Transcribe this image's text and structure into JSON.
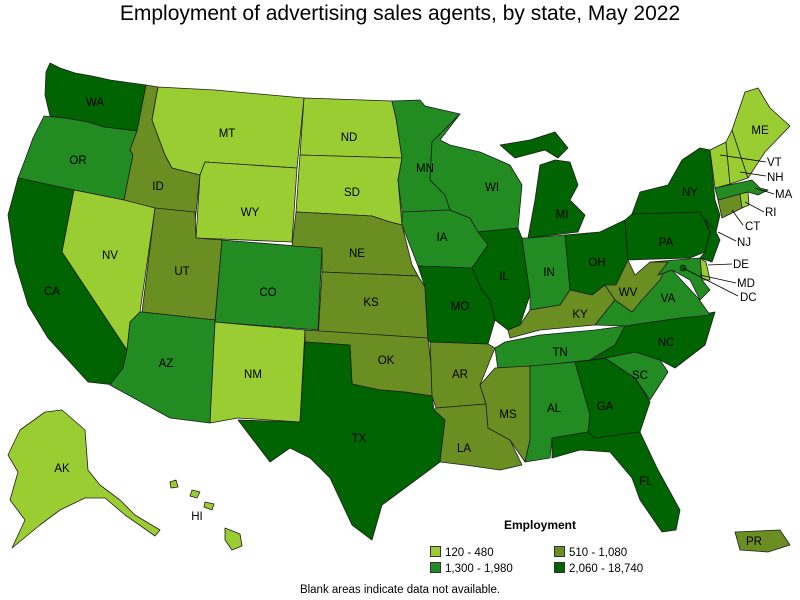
{
  "title": "Employment of advertising sales agents, by state, May 2022",
  "legend": {
    "title": "Employment",
    "items": [
      {
        "label": "120 - 480",
        "color": "#9acd32"
      },
      {
        "label": "510 - 1,080",
        "color": "#6b8e23"
      },
      {
        "label": "1,300 - 1,980",
        "color": "#228b22"
      },
      {
        "label": "2,060 - 18,740",
        "color": "#006400"
      }
    ]
  },
  "footnote": "Blank areas indicate data not available.",
  "chart_data": {
    "type": "choropleth",
    "categories": [
      "120 - 480",
      "510 - 1,080",
      "1,300 - 1,980",
      "2,060 - 18,740"
    ],
    "regions": [
      {
        "state": "WA",
        "bin": "2,060 - 18,740"
      },
      {
        "state": "OR",
        "bin": "1,300 - 1,980"
      },
      {
        "state": "CA",
        "bin": "2,060 - 18,740"
      },
      {
        "state": "ID",
        "bin": "510 - 1,080"
      },
      {
        "state": "NV",
        "bin": "120 - 480"
      },
      {
        "state": "MT",
        "bin": "120 - 480"
      },
      {
        "state": "WY",
        "bin": "120 - 480"
      },
      {
        "state": "UT",
        "bin": "510 - 1,080"
      },
      {
        "state": "AZ",
        "bin": "1,300 - 1,980"
      },
      {
        "state": "CO",
        "bin": "1,300 - 1,980"
      },
      {
        "state": "NM",
        "bin": "120 - 480"
      },
      {
        "state": "ND",
        "bin": "120 - 480"
      },
      {
        "state": "SD",
        "bin": "120 - 480"
      },
      {
        "state": "NE",
        "bin": "510 - 1,080"
      },
      {
        "state": "KS",
        "bin": "510 - 1,080"
      },
      {
        "state": "OK",
        "bin": "510 - 1,080"
      },
      {
        "state": "TX",
        "bin": "2,060 - 18,740"
      },
      {
        "state": "MN",
        "bin": "1,300 - 1,980"
      },
      {
        "state": "IA",
        "bin": "1,300 - 1,980"
      },
      {
        "state": "MO",
        "bin": "2,060 - 18,740"
      },
      {
        "state": "AR",
        "bin": "510 - 1,080"
      },
      {
        "state": "LA",
        "bin": "510 - 1,080"
      },
      {
        "state": "WI",
        "bin": "1,300 - 1,980"
      },
      {
        "state": "IL",
        "bin": "2,060 - 18,740"
      },
      {
        "state": "MI",
        "bin": "2,060 - 18,740"
      },
      {
        "state": "IN",
        "bin": "1,300 - 1,980"
      },
      {
        "state": "OH",
        "bin": "2,060 - 18,740"
      },
      {
        "state": "KY",
        "bin": "510 - 1,080"
      },
      {
        "state": "TN",
        "bin": "1,300 - 1,980"
      },
      {
        "state": "MS",
        "bin": "510 - 1,080"
      },
      {
        "state": "AL",
        "bin": "1,300 - 1,980"
      },
      {
        "state": "GA",
        "bin": "2,060 - 18,740"
      },
      {
        "state": "FL",
        "bin": "2,060 - 18,740"
      },
      {
        "state": "SC",
        "bin": "1,300 - 1,980"
      },
      {
        "state": "NC",
        "bin": "2,060 - 18,740"
      },
      {
        "state": "VA",
        "bin": "1,300 - 1,980"
      },
      {
        "state": "WV",
        "bin": "510 - 1,080"
      },
      {
        "state": "PA",
        "bin": "2,060 - 18,740"
      },
      {
        "state": "NY",
        "bin": "2,060 - 18,740"
      },
      {
        "state": "NJ",
        "bin": "2,060 - 18,740"
      },
      {
        "state": "DE",
        "bin": "120 - 480"
      },
      {
        "state": "MD",
        "bin": "1,300 - 1,980"
      },
      {
        "state": "DC",
        "bin": "2,060 - 18,740"
      },
      {
        "state": "CT",
        "bin": "510 - 1,080"
      },
      {
        "state": "RI",
        "bin": "120 - 480"
      },
      {
        "state": "MA",
        "bin": "1,300 - 1,980"
      },
      {
        "state": "VT",
        "bin": "120 - 480"
      },
      {
        "state": "NH",
        "bin": "120 - 480"
      },
      {
        "state": "ME",
        "bin": "120 - 480"
      },
      {
        "state": "AK",
        "bin": "120 - 480"
      },
      {
        "state": "HI",
        "bin": "120 - 480"
      },
      {
        "state": "PR",
        "bin": "510 - 1,080"
      }
    ]
  }
}
